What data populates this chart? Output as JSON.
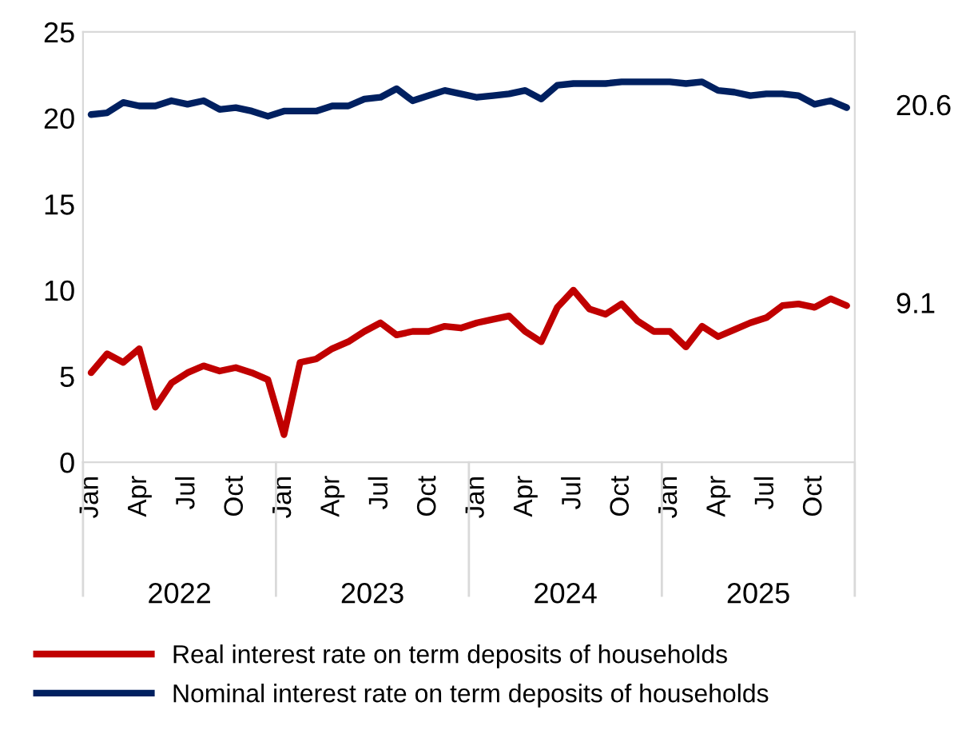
{
  "chart_data": {
    "type": "line",
    "categories": [
      "Jan",
      null,
      null,
      "Apr",
      null,
      null,
      "Jul",
      null,
      null,
      "Oct",
      null,
      null,
      "Jan",
      null,
      null,
      "Apr",
      null,
      null,
      "Jul",
      null,
      null,
      "Oct",
      null,
      null,
      "Jan",
      null,
      null,
      "Apr",
      null,
      null,
      "Jul",
      null,
      null,
      "Oct",
      null,
      null,
      "Jan",
      null,
      null,
      "Apr",
      null,
      null,
      "Jul",
      null,
      null,
      "Oct",
      null,
      null
    ],
    "series": [
      {
        "name": "Real interest rate on term deposits of households",
        "color": "#c00000",
        "values": [
          5.2,
          6.3,
          5.8,
          6.6,
          3.2,
          4.6,
          5.2,
          5.6,
          5.3,
          5.5,
          5.2,
          4.8,
          1.6,
          5.8,
          6.0,
          6.6,
          7.0,
          7.6,
          8.1,
          7.4,
          7.6,
          7.6,
          7.9,
          7.8,
          8.1,
          8.3,
          8.5,
          7.6,
          7.0,
          9.0,
          10.0,
          8.9,
          8.6,
          9.2,
          8.2,
          7.6,
          7.6,
          6.7,
          7.9,
          7.3,
          7.7,
          8.1,
          8.4,
          9.1,
          9.2,
          9.0,
          9.5,
          9.1
        ],
        "value_labels": [
          null,
          null,
          null,
          null,
          null,
          null,
          null,
          null,
          null,
          null,
          null,
          null,
          null,
          null,
          null,
          null,
          null,
          null,
          null,
          null,
          null,
          null,
          null,
          null,
          null,
          null,
          null,
          null,
          null,
          null,
          null,
          null,
          null,
          null,
          null,
          null,
          null,
          null,
          null,
          null,
          null,
          null,
          null,
          null,
          null,
          null,
          null,
          "9.1"
        ]
      },
      {
        "name": "Nominal interest rate on term deposits of households",
        "color": "#002060",
        "values": [
          20.2,
          20.3,
          20.9,
          20.7,
          20.7,
          21.0,
          20.8,
          21.0,
          20.5,
          20.6,
          20.4,
          20.1,
          20.4,
          20.4,
          20.4,
          20.7,
          20.7,
          21.1,
          21.2,
          21.7,
          21.0,
          21.3,
          21.6,
          21.4,
          21.2,
          21.3,
          21.4,
          21.6,
          21.1,
          21.9,
          22.0,
          22.0,
          22.0,
          22.1,
          22.1,
          22.1,
          22.1,
          22.0,
          22.1,
          21.6,
          21.5,
          21.3,
          21.4,
          21.4,
          21.3,
          20.8,
          21.0,
          20.6
        ],
        "value_labels": [
          null,
          null,
          null,
          null,
          null,
          null,
          null,
          null,
          null,
          null,
          null,
          null,
          null,
          null,
          null,
          null,
          null,
          null,
          null,
          null,
          null,
          null,
          null,
          null,
          null,
          null,
          null,
          null,
          null,
          null,
          null,
          null,
          null,
          null,
          null,
          null,
          null,
          null,
          null,
          null,
          null,
          null,
          null,
          null,
          null,
          null,
          null,
          "20.6"
        ]
      }
    ],
    "annotations": [
      "2022",
      "2023",
      "2024",
      "2025"
    ],
    "ylim": [
      0,
      25
    ],
    "yticks": [
      0,
      5,
      10,
      15,
      20,
      25
    ],
    "grid": false,
    "legend": "bottom",
    "line_style": "solid",
    "marker": "none"
  }
}
